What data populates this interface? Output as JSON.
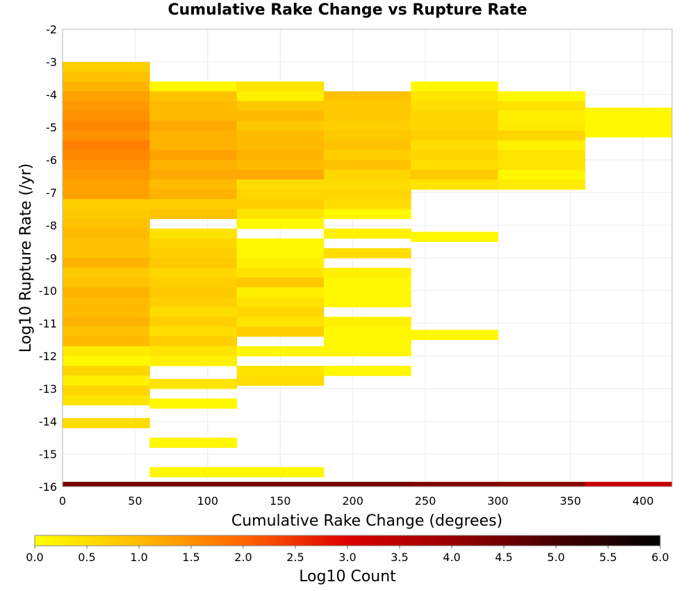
{
  "chart_data": {
    "type": "heatmap",
    "title": "Cumulative Rake Change vs Rupture Rate",
    "xlabel": "Cumulative Rake Change (degrees)",
    "ylabel": "Log10 Rupture Rate (/yr)",
    "xlim": [
      0,
      420
    ],
    "ylim": [
      -16,
      -2
    ],
    "x_ticks": [
      0,
      50,
      100,
      150,
      200,
      250,
      300,
      350,
      400
    ],
    "y_ticks": [
      -2,
      -3,
      -4,
      -5,
      -6,
      -7,
      -8,
      -9,
      -10,
      -11,
      -12,
      -13,
      -14,
      -15,
      -16
    ],
    "grid": true,
    "x_bin_width": 60,
    "y_bin_height": 0.3,
    "colorbar": {
      "label": "Log10 Count",
      "range": [
        0,
        6
      ],
      "ticks": [
        "0.0",
        "0.5",
        "1.0",
        "1.5",
        "2.0",
        "2.5",
        "3.0",
        "3.5",
        "4.0",
        "4.5",
        "5.0",
        "5.5",
        "6.0"
      ],
      "stops": [
        "#ffff00",
        "#ffbb00",
        "#ff6600",
        "#dd0000",
        "#990000",
        "#440000",
        "#000000"
      ]
    },
    "cells": [
      {
        "x": 0,
        "y": [
          -3.0,
          -3.3
        ],
        "v": 0.7
      },
      {
        "x": 0,
        "y": [
          -3.3,
          -3.6
        ],
        "v": 0.9
      },
      {
        "x": 0,
        "y": [
          -3.6,
          -3.9
        ],
        "v": 1.1
      },
      {
        "x": 0,
        "y": [
          -3.9,
          -4.2
        ],
        "v": 1.3
      },
      {
        "x": 0,
        "y": [
          -4.2,
          -4.5
        ],
        "v": 1.4
      },
      {
        "x": 0,
        "y": [
          -4.5,
          -4.8
        ],
        "v": 1.5
      },
      {
        "x": 0,
        "y": [
          -4.8,
          -5.1
        ],
        "v": 1.6
      },
      {
        "x": 0,
        "y": [
          -5.1,
          -5.4
        ],
        "v": 1.5
      },
      {
        "x": 0,
        "y": [
          -5.4,
          -5.7
        ],
        "v": 1.7
      },
      {
        "x": 0,
        "y": [
          -5.7,
          -6.0
        ],
        "v": 1.6
      },
      {
        "x": 0,
        "y": [
          -6.0,
          -6.3
        ],
        "v": 1.5
      },
      {
        "x": 0,
        "y": [
          -6.3,
          -6.6
        ],
        "v": 1.4
      },
      {
        "x": 0,
        "y": [
          -6.6,
          -6.9
        ],
        "v": 1.3
      },
      {
        "x": 0,
        "y": [
          -6.9,
          -7.2
        ],
        "v": 1.3
      },
      {
        "x": 0,
        "y": [
          -7.2,
          -7.5
        ],
        "v": 0.7
      },
      {
        "x": 0,
        "y": [
          -7.5,
          -7.8
        ],
        "v": 0.8
      },
      {
        "x": 0,
        "y": [
          -7.8,
          -8.1
        ],
        "v": 0.9
      },
      {
        "x": 0,
        "y": [
          -8.1,
          -8.4
        ],
        "v": 1.0
      },
      {
        "x": 0,
        "y": [
          -8.4,
          -8.7
        ],
        "v": 0.9
      },
      {
        "x": 0,
        "y": [
          -8.7,
          -9.0
        ],
        "v": 0.9
      },
      {
        "x": 0,
        "y": [
          -9.0,
          -9.3
        ],
        "v": 1.1
      },
      {
        "x": 0,
        "y": [
          -9.3,
          -9.6
        ],
        "v": 0.8
      },
      {
        "x": 0,
        "y": [
          -9.6,
          -9.9
        ],
        "v": 0.9
      },
      {
        "x": 0,
        "y": [
          -9.9,
          -10.2
        ],
        "v": 1.1
      },
      {
        "x": 0,
        "y": [
          -10.2,
          -10.5
        ],
        "v": 1.0
      },
      {
        "x": 0,
        "y": [
          -10.5,
          -10.8
        ],
        "v": 1.0
      },
      {
        "x": 0,
        "y": [
          -10.8,
          -11.1
        ],
        "v": 1.1
      },
      {
        "x": 0,
        "y": [
          -11.1,
          -11.4
        ],
        "v": 0.9
      },
      {
        "x": 0,
        "y": [
          -11.4,
          -11.7
        ],
        "v": 1.0
      },
      {
        "x": 0,
        "y": [
          -11.7,
          -12.0
        ],
        "v": 0.3
      },
      {
        "x": 0,
        "y": [
          -12.0,
          -12.3
        ],
        "v": 0.1
      },
      {
        "x": 0,
        "y": [
          -12.3,
          -12.6
        ],
        "v": 0.6
      },
      {
        "x": 0,
        "y": [
          -12.6,
          -12.9
        ],
        "v": 0.2
      },
      {
        "x": 0,
        "y": [
          -12.9,
          -13.2
        ],
        "v": 0.6
      },
      {
        "x": 0,
        "y": [
          -13.2,
          -13.5
        ],
        "v": 0.4
      },
      {
        "x": 0,
        "y": [
          -13.9,
          -14.2
        ],
        "v": 0.5
      },
      {
        "x": 60,
        "y": [
          -3.6,
          -3.9
        ],
        "v": 0.1
      },
      {
        "x": 60,
        "y": [
          -3.9,
          -4.2
        ],
        "v": 0.9
      },
      {
        "x": 60,
        "y": [
          -4.2,
          -4.5
        ],
        "v": 1.0
      },
      {
        "x": 60,
        "y": [
          -4.5,
          -4.8
        ],
        "v": 1.0
      },
      {
        "x": 60,
        "y": [
          -4.8,
          -5.1
        ],
        "v": 1.2
      },
      {
        "x": 60,
        "y": [
          -5.1,
          -5.4
        ],
        "v": 1.1
      },
      {
        "x": 60,
        "y": [
          -5.4,
          -5.7
        ],
        "v": 1.1
      },
      {
        "x": 60,
        "y": [
          -5.7,
          -6.0
        ],
        "v": 1.3
      },
      {
        "x": 60,
        "y": [
          -6.0,
          -6.3
        ],
        "v": 1.1
      },
      {
        "x": 60,
        "y": [
          -6.3,
          -6.6
        ],
        "v": 1.2
      },
      {
        "x": 60,
        "y": [
          -6.6,
          -6.9
        ],
        "v": 1.0
      },
      {
        "x": 60,
        "y": [
          -6.9,
          -7.2
        ],
        "v": 1.1
      },
      {
        "x": 60,
        "y": [
          -7.2,
          -7.5
        ],
        "v": 0.7
      },
      {
        "x": 60,
        "y": [
          -7.5,
          -7.8
        ],
        "v": 0.9
      },
      {
        "x": 60,
        "y": [
          -8.1,
          -8.4
        ],
        "v": 0.4
      },
      {
        "x": 60,
        "y": [
          -8.4,
          -8.7
        ],
        "v": 0.6
      },
      {
        "x": 60,
        "y": [
          -8.7,
          -9.0
        ],
        "v": 0.7
      },
      {
        "x": 60,
        "y": [
          -9.0,
          -9.3
        ],
        "v": 0.8
      },
      {
        "x": 60,
        "y": [
          -9.3,
          -9.6
        ],
        "v": 0.6
      },
      {
        "x": 60,
        "y": [
          -9.6,
          -9.9
        ],
        "v": 0.7
      },
      {
        "x": 60,
        "y": [
          -9.9,
          -10.2
        ],
        "v": 0.8
      },
      {
        "x": 60,
        "y": [
          -10.2,
          -10.5
        ],
        "v": 0.7
      },
      {
        "x": 60,
        "y": [
          -10.5,
          -10.8
        ],
        "v": 0.5
      },
      {
        "x": 60,
        "y": [
          -10.8,
          -11.1
        ],
        "v": 0.7
      },
      {
        "x": 60,
        "y": [
          -11.1,
          -11.4
        ],
        "v": 0.5
      },
      {
        "x": 60,
        "y": [
          -11.4,
          -11.7
        ],
        "v": 0.7
      },
      {
        "x": 60,
        "y": [
          -11.7,
          -12.0
        ],
        "v": 0.4
      },
      {
        "x": 60,
        "y": [
          -12.0,
          -12.3
        ],
        "v": 0.2
      },
      {
        "x": 60,
        "y": [
          -12.7,
          -13.0
        ],
        "v": 0.4
      },
      {
        "x": 60,
        "y": [
          -13.3,
          -13.6
        ],
        "v": 0.1
      },
      {
        "x": 60,
        "y": [
          -14.5,
          -14.8
        ],
        "v": 0.1
      },
      {
        "x": 60,
        "y": [
          -15.4,
          -15.7
        ],
        "v": 0.1
      },
      {
        "x": 120,
        "y": [
          -3.6,
          -3.9
        ],
        "v": 0.4
      },
      {
        "x": 120,
        "y": [
          -3.9,
          -4.2
        ],
        "v": 0.2
      },
      {
        "x": 120,
        "y": [
          -4.2,
          -4.5
        ],
        "v": 0.8
      },
      {
        "x": 120,
        "y": [
          -4.5,
          -4.8
        ],
        "v": 1.0
      },
      {
        "x": 120,
        "y": [
          -4.8,
          -5.1
        ],
        "v": 0.8
      },
      {
        "x": 120,
        "y": [
          -5.1,
          -5.4
        ],
        "v": 1.0
      },
      {
        "x": 120,
        "y": [
          -5.4,
          -5.7
        ],
        "v": 1.0
      },
      {
        "x": 120,
        "y": [
          -5.7,
          -6.0
        ],
        "v": 1.1
      },
      {
        "x": 120,
        "y": [
          -6.0,
          -6.3
        ],
        "v": 1.0
      },
      {
        "x": 120,
        "y": [
          -6.3,
          -6.6
        ],
        "v": 1.2
      },
      {
        "x": 120,
        "y": [
          -6.6,
          -6.9
        ],
        "v": 0.5
      },
      {
        "x": 120,
        "y": [
          -6.9,
          -7.2
        ],
        "v": 0.6
      },
      {
        "x": 120,
        "y": [
          -7.2,
          -7.5
        ],
        "v": 0.7
      },
      {
        "x": 120,
        "y": [
          -7.5,
          -7.8
        ],
        "v": 0.4
      },
      {
        "x": 120,
        "y": [
          -7.8,
          -8.1
        ],
        "v": 0.1
      },
      {
        "x": 120,
        "y": [
          -8.4,
          -8.7
        ],
        "v": 0.1
      },
      {
        "x": 120,
        "y": [
          -8.7,
          -9.0
        ],
        "v": 0.1
      },
      {
        "x": 120,
        "y": [
          -9.0,
          -9.3
        ],
        "v": 0.2
      },
      {
        "x": 120,
        "y": [
          -9.3,
          -9.6
        ],
        "v": 0.4
      },
      {
        "x": 120,
        "y": [
          -9.6,
          -9.9
        ],
        "v": 0.8
      },
      {
        "x": 120,
        "y": [
          -9.9,
          -10.2
        ],
        "v": 0.2
      },
      {
        "x": 120,
        "y": [
          -10.2,
          -10.5
        ],
        "v": 0.4
      },
      {
        "x": 120,
        "y": [
          -10.5,
          -10.8
        ],
        "v": 0.6
      },
      {
        "x": 120,
        "y": [
          -10.8,
          -11.1
        ],
        "v": 0.4
      },
      {
        "x": 120,
        "y": [
          -11.1,
          -11.4
        ],
        "v": 0.7
      },
      {
        "x": 120,
        "y": [
          -11.7,
          -12.0
        ],
        "v": 0.1
      },
      {
        "x": 120,
        "y": [
          -12.3,
          -12.6
        ],
        "v": 0.4
      },
      {
        "x": 120,
        "y": [
          -12.6,
          -12.9
        ],
        "v": 0.5
      },
      {
        "x": 120,
        "y": [
          -15.4,
          -15.7
        ],
        "v": 0.1
      },
      {
        "x": 180,
        "y": [
          -3.9,
          -4.2
        ],
        "v": 0.9
      },
      {
        "x": 180,
        "y": [
          -4.2,
          -4.5
        ],
        "v": 0.8
      },
      {
        "x": 180,
        "y": [
          -4.5,
          -4.8
        ],
        "v": 0.8
      },
      {
        "x": 180,
        "y": [
          -4.8,
          -5.1
        ],
        "v": 0.7
      },
      {
        "x": 180,
        "y": [
          -5.1,
          -5.4
        ],
        "v": 0.8
      },
      {
        "x": 180,
        "y": [
          -5.4,
          -5.7
        ],
        "v": 0.9
      },
      {
        "x": 180,
        "y": [
          -5.7,
          -6.0
        ],
        "v": 0.7
      },
      {
        "x": 180,
        "y": [
          -6.0,
          -6.3
        ],
        "v": 0.9
      },
      {
        "x": 180,
        "y": [
          -6.3,
          -6.6
        ],
        "v": 0.6
      },
      {
        "x": 180,
        "y": [
          -6.6,
          -6.9
        ],
        "v": 0.5
      },
      {
        "x": 180,
        "y": [
          -6.9,
          -7.2
        ],
        "v": 0.6
      },
      {
        "x": 180,
        "y": [
          -7.2,
          -7.5
        ],
        "v": 0.5
      },
      {
        "x": 180,
        "y": [
          -7.5,
          -7.8
        ],
        "v": 0.1
      },
      {
        "x": 180,
        "y": [
          -8.1,
          -8.4
        ],
        "v": 0.2
      },
      {
        "x": 180,
        "y": [
          -8.7,
          -9.0
        ],
        "v": 0.5
      },
      {
        "x": 180,
        "y": [
          -9.3,
          -9.6
        ],
        "v": 0.2
      },
      {
        "x": 180,
        "y": [
          -9.6,
          -9.9
        ],
        "v": 0.1
      },
      {
        "x": 180,
        "y": [
          -9.9,
          -10.2
        ],
        "v": 0.1
      },
      {
        "x": 180,
        "y": [
          -10.2,
          -10.5
        ],
        "v": 0.1
      },
      {
        "x": 180,
        "y": [
          -10.8,
          -11.1
        ],
        "v": 0.2
      },
      {
        "x": 180,
        "y": [
          -11.1,
          -11.4
        ],
        "v": 0.1
      },
      {
        "x": 180,
        "y": [
          -11.4,
          -11.7
        ],
        "v": 0.1
      },
      {
        "x": 180,
        "y": [
          -11.7,
          -12.0
        ],
        "v": 0.1
      },
      {
        "x": 180,
        "y": [
          -12.3,
          -12.6
        ],
        "v": 0.1
      },
      {
        "x": 240,
        "y": [
          -3.6,
          -3.9
        ],
        "v": 0.1
      },
      {
        "x": 240,
        "y": [
          -3.9,
          -4.2
        ],
        "v": 0.4
      },
      {
        "x": 240,
        "y": [
          -4.2,
          -4.5
        ],
        "v": 0.5
      },
      {
        "x": 240,
        "y": [
          -4.5,
          -4.8
        ],
        "v": 0.6
      },
      {
        "x": 240,
        "y": [
          -4.8,
          -5.1
        ],
        "v": 0.6
      },
      {
        "x": 240,
        "y": [
          -5.1,
          -5.4
        ],
        "v": 0.7
      },
      {
        "x": 240,
        "y": [
          -5.4,
          -5.7
        ],
        "v": 0.5
      },
      {
        "x": 240,
        "y": [
          -5.7,
          -6.0
        ],
        "v": 0.6
      },
      {
        "x": 240,
        "y": [
          -6.0,
          -6.3
        ],
        "v": 0.5
      },
      {
        "x": 240,
        "y": [
          -6.3,
          -6.6
        ],
        "v": 0.8
      },
      {
        "x": 240,
        "y": [
          -6.6,
          -6.9
        ],
        "v": 0.4
      },
      {
        "x": 240,
        "y": [
          -8.2,
          -8.5
        ],
        "v": 0.1
      },
      {
        "x": 240,
        "y": [
          -11.2,
          -11.5
        ],
        "v": 0.1
      },
      {
        "x": 300,
        "y": [
          -3.9,
          -4.2
        ],
        "v": 0.1
      },
      {
        "x": 300,
        "y": [
          -4.2,
          -4.5
        ],
        "v": 0.4
      },
      {
        "x": 300,
        "y": [
          -4.5,
          -4.8
        ],
        "v": 0.2
      },
      {
        "x": 300,
        "y": [
          -4.8,
          -5.1
        ],
        "v": 0.3
      },
      {
        "x": 300,
        "y": [
          -5.1,
          -5.4
        ],
        "v": 0.6
      },
      {
        "x": 300,
        "y": [
          -5.4,
          -5.7
        ],
        "v": 0.2
      },
      {
        "x": 300,
        "y": [
          -5.7,
          -6.0
        ],
        "v": 0.4
      },
      {
        "x": 300,
        "y": [
          -6.0,
          -6.3
        ],
        "v": 0.4
      },
      {
        "x": 300,
        "y": [
          -6.3,
          -6.6
        ],
        "v": 0.1
      },
      {
        "x": 300,
        "y": [
          -6.6,
          -6.9
        ],
        "v": 0.3
      },
      {
        "x": 360,
        "y": [
          -4.4,
          -5.3
        ],
        "v": 0.1
      }
    ],
    "marginal_row": {
      "y": [
        -15.85,
        -16.0
      ],
      "cells": [
        {
          "x": 0,
          "v": 4.4
        },
        {
          "x": 60,
          "v": 4.4
        },
        {
          "x": 120,
          "v": 4.4
        },
        {
          "x": 180,
          "v": 4.4
        },
        {
          "x": 240,
          "v": 4.3
        },
        {
          "x": 300,
          "v": 4.2
        },
        {
          "x": 360,
          "v": 3.3
        }
      ]
    }
  }
}
